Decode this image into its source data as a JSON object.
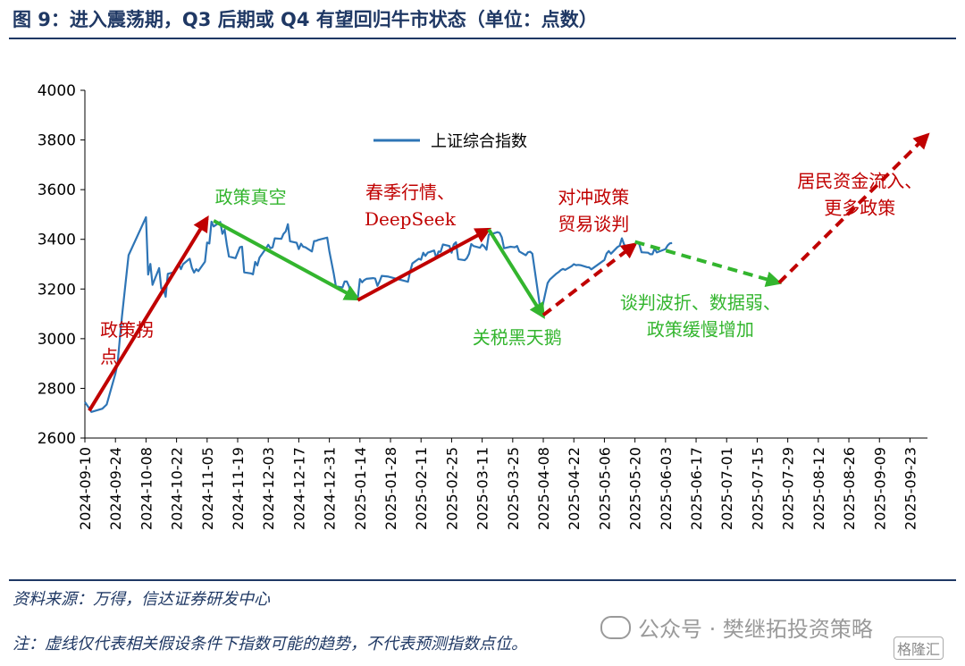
{
  "header": {
    "title": "图 9：进入震荡期，Q3 后期或 Q4 有望回归牛市状态（单位：点数）"
  },
  "footer": {
    "source": "资料来源：万得，信达证券研发中心",
    "note": "注：虚线仅代表相关假设条件下指数可能的趋势，不代表预测指数点位。",
    "watermark": "公众号 · 樊继拓投资策略",
    "corner_logo": "格隆汇"
  },
  "colors": {
    "series": "#2e75b6",
    "uptrend": "#c00000",
    "downtrend": "#33b52e",
    "axis": "#000000",
    "title": "#1f3864"
  },
  "chart_data": {
    "type": "line",
    "ylim": [
      2600,
      4000
    ],
    "yticks": [
      2600,
      2800,
      3000,
      3200,
      3400,
      3600,
      3800,
      4000
    ],
    "xlim": [
      "2024-09-10",
      "2025-10-01"
    ],
    "xticks": [
      "2024-09-10",
      "2024-09-24",
      "2024-10-08",
      "2024-10-22",
      "2024-11-05",
      "2024-11-19",
      "2024-12-03",
      "2024-12-17",
      "2024-12-31",
      "2025-01-14",
      "2025-01-28",
      "2025-02-11",
      "2025-02-25",
      "2025-03-11",
      "2025-03-25",
      "2025-04-08",
      "2025-04-22",
      "2025-05-06",
      "2025-05-20",
      "2025-06-03",
      "2025-06-17",
      "2025-07-01",
      "2025-07-15",
      "2025-07-29",
      "2025-08-12",
      "2025-08-26",
      "2025-09-09",
      "2025-09-23"
    ],
    "legend": {
      "label": "上证综合指数",
      "position": "top-center"
    },
    "series": [
      {
        "name": "上证综合指数",
        "points": [
          [
            "2024-09-10",
            2745
          ],
          [
            "2024-09-12",
            2720
          ],
          [
            "2024-09-13",
            2705
          ],
          [
            "2024-09-18",
            2718
          ],
          [
            "2024-09-20",
            2735
          ],
          [
            "2024-09-24",
            2860
          ],
          [
            "2024-09-25",
            2900
          ],
          [
            "2024-09-26",
            3000
          ],
          [
            "2024-09-27",
            3090
          ],
          [
            "2024-09-30",
            3336
          ],
          [
            "2024-10-08",
            3489
          ],
          [
            "2024-10-09",
            3258
          ],
          [
            "2024-10-10",
            3301
          ],
          [
            "2024-10-11",
            3217
          ],
          [
            "2024-10-14",
            3284
          ],
          [
            "2024-10-15",
            3202
          ],
          [
            "2024-10-16",
            3202
          ],
          [
            "2024-10-17",
            3169
          ],
          [
            "2024-10-18",
            3261
          ],
          [
            "2024-10-21",
            3268
          ],
          [
            "2024-10-22",
            3285
          ],
          [
            "2024-10-23",
            3302
          ],
          [
            "2024-10-24",
            3280
          ],
          [
            "2024-10-25",
            3300
          ],
          [
            "2024-10-28",
            3322
          ],
          [
            "2024-10-29",
            3286
          ],
          [
            "2024-10-30",
            3266
          ],
          [
            "2024-10-31",
            3280
          ],
          [
            "2024-11-01",
            3272
          ],
          [
            "2024-11-04",
            3310
          ],
          [
            "2024-11-05",
            3387
          ],
          [
            "2024-11-06",
            3383
          ],
          [
            "2024-11-07",
            3471
          ],
          [
            "2024-11-08",
            3452
          ],
          [
            "2024-11-11",
            3470
          ],
          [
            "2024-11-12",
            3422
          ],
          [
            "2024-11-13",
            3439
          ],
          [
            "2024-11-14",
            3380
          ],
          [
            "2024-11-15",
            3331
          ],
          [
            "2024-11-18",
            3324
          ],
          [
            "2024-11-19",
            3346
          ],
          [
            "2024-11-20",
            3368
          ],
          [
            "2024-11-21",
            3370
          ],
          [
            "2024-11-22",
            3267
          ],
          [
            "2024-11-25",
            3263
          ],
          [
            "2024-11-26",
            3259
          ],
          [
            "2024-11-27",
            3309
          ],
          [
            "2024-11-28",
            3295
          ],
          [
            "2024-11-29",
            3326
          ],
          [
            "2024-12-02",
            3364
          ],
          [
            "2024-12-03",
            3378
          ],
          [
            "2024-12-04",
            3364
          ],
          [
            "2024-12-05",
            3368
          ],
          [
            "2024-12-06",
            3404
          ],
          [
            "2024-12-09",
            3402
          ],
          [
            "2024-12-10",
            3422
          ],
          [
            "2024-12-11",
            3432
          ],
          [
            "2024-12-12",
            3461
          ],
          [
            "2024-12-13",
            3392
          ],
          [
            "2024-12-16",
            3386
          ],
          [
            "2024-12-17",
            3361
          ],
          [
            "2024-12-18",
            3382
          ],
          [
            "2024-12-19",
            3370
          ],
          [
            "2024-12-20",
            3368
          ],
          [
            "2024-12-23",
            3351
          ],
          [
            "2024-12-24",
            3393
          ],
          [
            "2024-12-25",
            3394
          ],
          [
            "2024-12-26",
            3398
          ],
          [
            "2024-12-27",
            3400
          ],
          [
            "2024-12-30",
            3407
          ],
          [
            "2024-12-31",
            3352
          ],
          [
            "2025-01-02",
            3262
          ],
          [
            "2025-01-03",
            3211
          ],
          [
            "2025-01-06",
            3206
          ],
          [
            "2025-01-07",
            3230
          ],
          [
            "2025-01-08",
            3230
          ],
          [
            "2025-01-09",
            3211
          ],
          [
            "2025-01-10",
            3169
          ],
          [
            "2025-01-13",
            3161
          ],
          [
            "2025-01-14",
            3240
          ],
          [
            "2025-01-15",
            3227
          ],
          [
            "2025-01-16",
            3236
          ],
          [
            "2025-01-17",
            3241
          ],
          [
            "2025-01-20",
            3244
          ],
          [
            "2025-01-21",
            3242
          ],
          [
            "2025-01-22",
            3213
          ],
          [
            "2025-01-23",
            3230
          ],
          [
            "2025-01-24",
            3253
          ],
          [
            "2025-01-27",
            3250
          ],
          [
            "2025-02-05",
            3229
          ],
          [
            "2025-02-06",
            3270
          ],
          [
            "2025-02-07",
            3303
          ],
          [
            "2025-02-10",
            3322
          ],
          [
            "2025-02-11",
            3318
          ],
          [
            "2025-02-12",
            3346
          ],
          [
            "2025-02-13",
            3333
          ],
          [
            "2025-02-14",
            3346
          ],
          [
            "2025-02-17",
            3355
          ],
          [
            "2025-02-18",
            3324
          ],
          [
            "2025-02-19",
            3351
          ],
          [
            "2025-02-20",
            3350
          ],
          [
            "2025-02-21",
            3379
          ],
          [
            "2025-02-24",
            3373
          ],
          [
            "2025-02-25",
            3346
          ],
          [
            "2025-02-26",
            3380
          ],
          [
            "2025-02-27",
            3388
          ],
          [
            "2025-02-28",
            3320
          ],
          [
            "2025-03-03",
            3316
          ],
          [
            "2025-03-04",
            3324
          ],
          [
            "2025-03-05",
            3342
          ],
          [
            "2025-03-06",
            3381
          ],
          [
            "2025-03-07",
            3373
          ],
          [
            "2025-03-10",
            3366
          ],
          [
            "2025-03-11",
            3379
          ],
          [
            "2025-03-12",
            3371
          ],
          [
            "2025-03-13",
            3358
          ],
          [
            "2025-03-14",
            3419
          ],
          [
            "2025-03-17",
            3426
          ],
          [
            "2025-03-18",
            3429
          ],
          [
            "2025-03-19",
            3426
          ],
          [
            "2025-03-20",
            3408
          ],
          [
            "2025-03-21",
            3364
          ],
          [
            "2025-03-24",
            3370
          ],
          [
            "2025-03-25",
            3369
          ],
          [
            "2025-03-26",
            3368
          ],
          [
            "2025-03-27",
            3373
          ],
          [
            "2025-03-28",
            3351
          ],
          [
            "2025-03-31",
            3336
          ],
          [
            "2025-04-01",
            3348
          ],
          [
            "2025-04-02",
            3350
          ],
          [
            "2025-04-03",
            3342
          ],
          [
            "2025-04-07",
            3097
          ],
          [
            "2025-04-08",
            3145
          ],
          [
            "2025-04-09",
            3186
          ],
          [
            "2025-04-10",
            3224
          ],
          [
            "2025-04-11",
            3238
          ],
          [
            "2025-04-14",
            3262
          ],
          [
            "2025-04-15",
            3268
          ],
          [
            "2025-04-16",
            3276
          ],
          [
            "2025-04-17",
            3281
          ],
          [
            "2025-04-18",
            3277
          ],
          [
            "2025-04-21",
            3292
          ],
          [
            "2025-04-22",
            3300
          ],
          [
            "2025-04-23",
            3296
          ],
          [
            "2025-04-24",
            3297
          ],
          [
            "2025-04-25",
            3296
          ],
          [
            "2025-04-28",
            3288
          ],
          [
            "2025-04-29",
            3287
          ],
          [
            "2025-04-30",
            3279
          ],
          [
            "2025-05-06",
            3317
          ],
          [
            "2025-05-07",
            3343
          ],
          [
            "2025-05-08",
            3353
          ],
          [
            "2025-05-09",
            3342
          ],
          [
            "2025-05-12",
            3369
          ],
          [
            "2025-05-13",
            3374
          ],
          [
            "2025-05-14",
            3404
          ],
          [
            "2025-05-15",
            3380
          ],
          [
            "2025-05-16",
            3367
          ],
          [
            "2025-05-19",
            3367
          ],
          [
            "2025-05-20",
            3381
          ],
          [
            "2025-05-21",
            3387
          ],
          [
            "2025-05-22",
            3380
          ],
          [
            "2025-05-23",
            3348
          ],
          [
            "2025-05-26",
            3346
          ],
          [
            "2025-05-27",
            3340
          ],
          [
            "2025-05-28",
            3340
          ],
          [
            "2025-05-29",
            3363
          ],
          [
            "2025-05-30",
            3347
          ],
          [
            "2025-06-03",
            3361
          ],
          [
            "2025-06-04",
            3376
          ],
          [
            "2025-06-05",
            3384
          ],
          [
            "2025-06-06",
            3385
          ]
        ]
      }
    ],
    "trend_arrows": [
      {
        "kind": "solid",
        "color": "uptrend",
        "from": [
          "2024-09-12",
          2710
        ],
        "to": [
          "2024-11-05",
          3485
        ]
      },
      {
        "kind": "solid",
        "color": "downtrend",
        "from": [
          "2024-11-08",
          3475
        ],
        "to": [
          "2025-01-13",
          3160
        ]
      },
      {
        "kind": "solid",
        "color": "uptrend",
        "from": [
          "2025-01-13",
          3155
        ],
        "to": [
          "2025-03-14",
          3440
        ]
      },
      {
        "kind": "solid",
        "color": "downtrend",
        "from": [
          "2025-03-14",
          3440
        ],
        "to": [
          "2025-04-08",
          3090
        ]
      },
      {
        "kind": "dashed",
        "color": "uptrend",
        "from": [
          "2025-04-08",
          3095
        ],
        "to": [
          "2025-05-20",
          3380
        ]
      },
      {
        "kind": "dashed",
        "color": "downtrend",
        "from": [
          "2025-05-20",
          3390
        ],
        "to": [
          "2025-07-25",
          3225
        ]
      },
      {
        "kind": "dashed",
        "color": "uptrend",
        "from": [
          "2025-07-25",
          3225
        ],
        "to": [
          "2025-10-01",
          3820
        ]
      }
    ],
    "annotations": [
      {
        "text": [
          "政策拐",
          "点"
        ],
        "color": "uptrend",
        "at": [
          "2024-09-17",
          3010
        ],
        "anchor": "start"
      },
      {
        "text": [
          "政策真空"
        ],
        "color": "downtrend",
        "at": [
          "2024-11-25",
          3545
        ],
        "anchor": "middle"
      },
      {
        "text": [
          "春季行情、",
          "DeepSeek"
        ],
        "color": "uptrend",
        "at": [
          "2025-02-06",
          3565
        ],
        "anchor": "middle"
      },
      {
        "text": [
          "关税黑天鹅"
        ],
        "color": "downtrend",
        "at": [
          "2025-03-27",
          2980
        ],
        "anchor": "middle"
      },
      {
        "text": [
          "对冲政策",
          "贸易谈判"
        ],
        "color": "uptrend",
        "at": [
          "2025-05-01",
          3545
        ],
        "anchor": "middle"
      },
      {
        "text": [
          "谈判波折、数据弱、",
          "政策缓慢增加"
        ],
        "color": "downtrend",
        "at": [
          "2025-06-19",
          3120
        ],
        "anchor": "middle"
      },
      {
        "text": [
          "居民资金流入、",
          "更多政策"
        ],
        "color": "uptrend",
        "at": [
          "2025-08-31",
          3610
        ],
        "anchor": "middle"
      }
    ]
  }
}
